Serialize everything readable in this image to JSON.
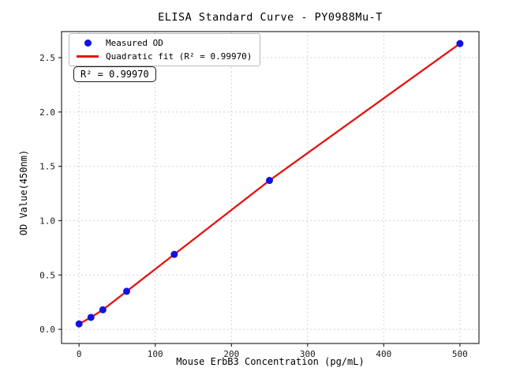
{
  "figure": {
    "title": "ELISA Standard Curve - PY0988Mu-T",
    "x_axis_label": "Mouse ErbB3 Concentration (pg/mL)",
    "y_axis_label": "OD Value(450nm)",
    "r_squared_annotation": "R² = 0.99970",
    "legend": {
      "items": [
        {
          "label": "Measured OD",
          "marker": "dot",
          "color": "#1212e0"
        },
        {
          "label": "Quadratic fit (R² = 0.99970)",
          "marker": "line",
          "color": "#e41414"
        }
      ]
    }
  },
  "chart_data": {
    "type": "scatter",
    "title": "ELISA Standard Curve - PY0988Mu-T",
    "xlabel": "Mouse ErbB3 Concentration (pg/mL)",
    "ylabel": "OD Value(450nm)",
    "x": [
      0,
      15.6,
      31.25,
      62.5,
      125,
      250,
      500
    ],
    "series": [
      {
        "name": "Measured OD",
        "type": "scatter",
        "color": "#1212e0",
        "values": [
          0.05,
          0.11,
          0.18,
          0.35,
          0.69,
          1.37,
          2.63
        ]
      },
      {
        "name": "Quadratic fit (R² = 0.99970)",
        "type": "line",
        "color": "#e41414",
        "values": [
          0.05,
          0.11,
          0.18,
          0.35,
          0.69,
          1.37,
          2.63
        ]
      }
    ],
    "r_squared": 0.9997,
    "xlim": [
      -23,
      525
    ],
    "ylim": [
      -0.13,
      2.74
    ],
    "xticks": [
      0,
      100,
      200,
      300,
      400,
      500
    ],
    "xtick_labels": [
      "0",
      "100",
      "200",
      "300",
      "400",
      "500"
    ],
    "yticks": [
      0.0,
      0.5,
      1.0,
      1.5,
      2.0,
      2.5
    ],
    "ytick_labels": [
      "0.0",
      "0.5",
      "1.0",
      "1.5",
      "2.0",
      "2.5"
    ],
    "grid": true,
    "legend_position": "upper-left"
  }
}
